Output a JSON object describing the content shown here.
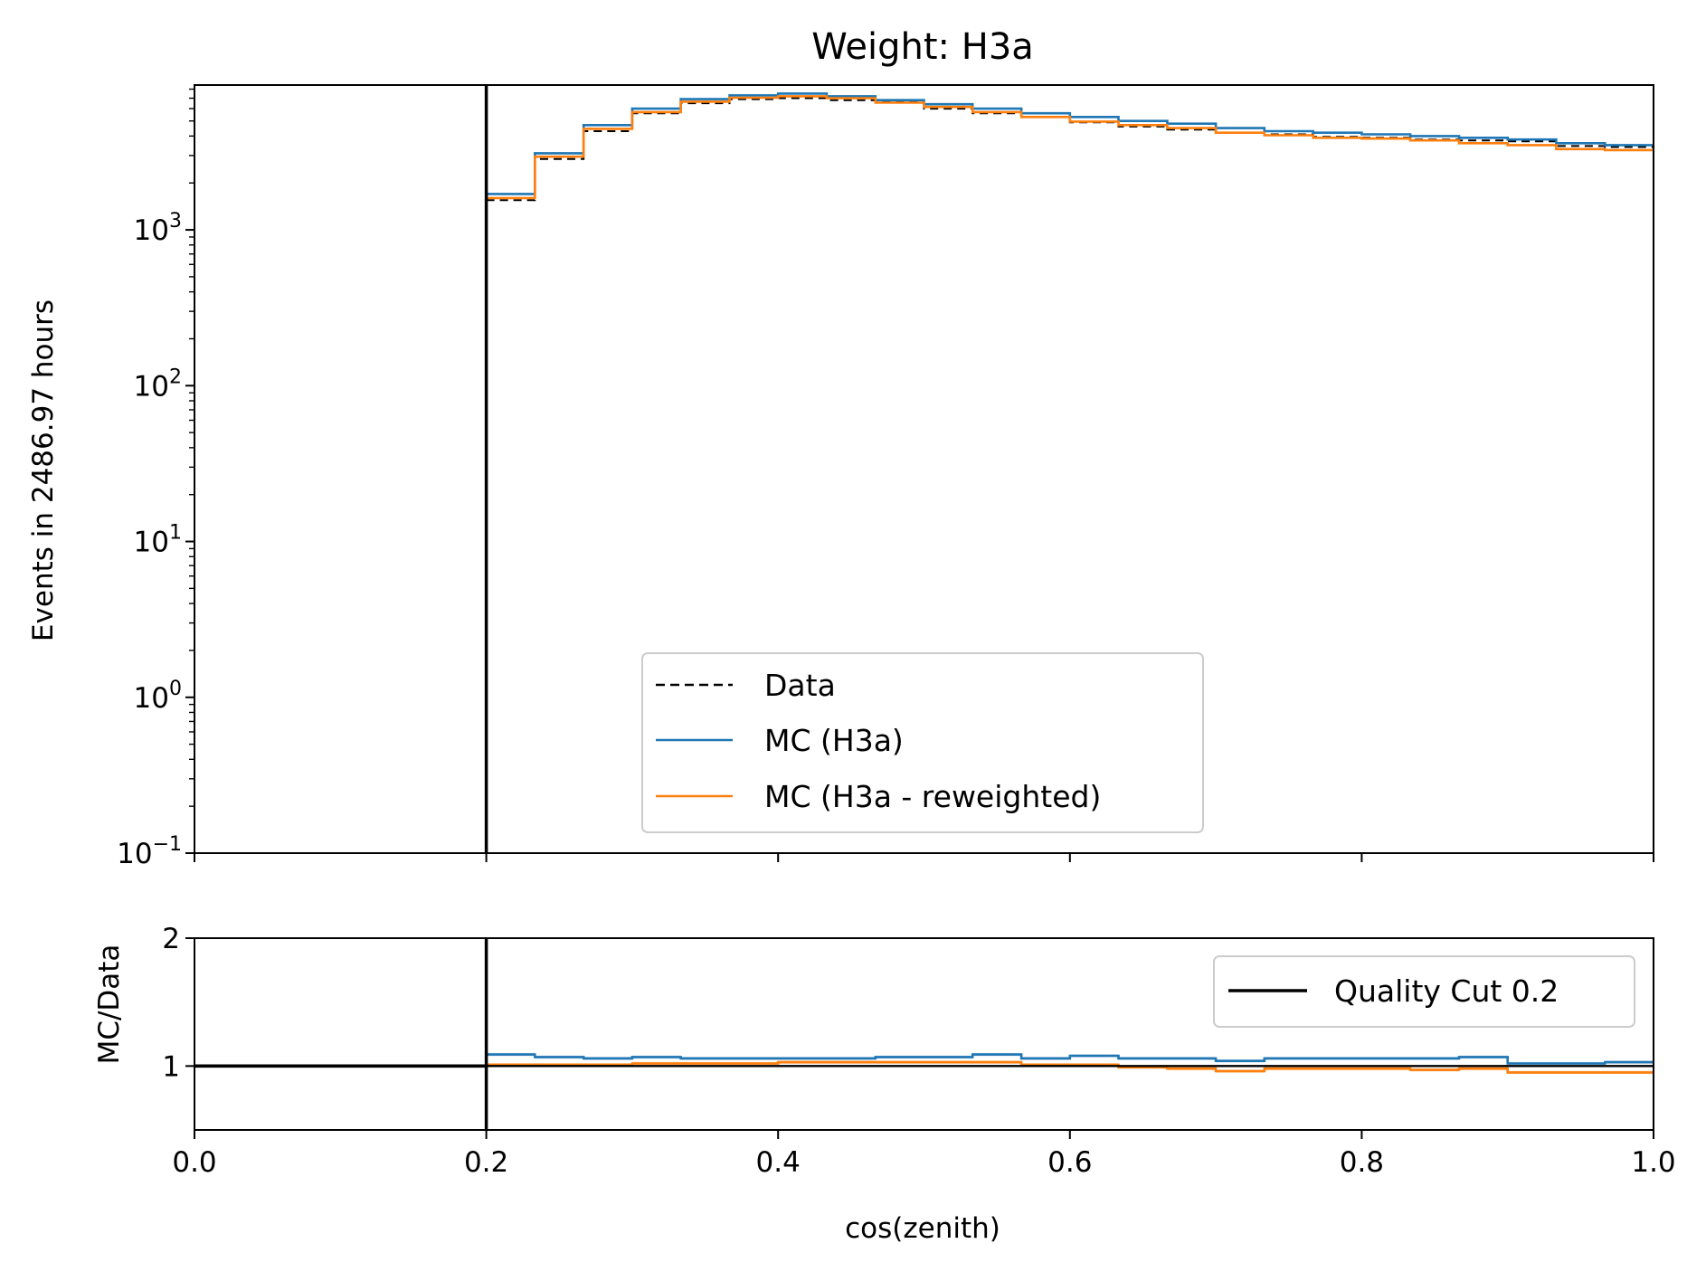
{
  "chart_data": [
    {
      "type": "line",
      "panel": "main",
      "title": "Weight: H3a",
      "ylabel": "Events in 2486.97 hours",
      "yscale": "log",
      "ylim": [
        0.1,
        8500
      ],
      "xlim": [
        0,
        1
      ],
      "y_ticks": [
        {
          "value": 0.1,
          "base": "10",
          "exp": "−1"
        },
        {
          "value": 1,
          "base": "10",
          "exp": "0"
        },
        {
          "value": 10,
          "base": "10",
          "exp": "1"
        },
        {
          "value": 100,
          "base": "10",
          "exp": "2"
        },
        {
          "value": 1000,
          "base": "10",
          "exp": "3"
        }
      ],
      "bin_edges": [
        0.2,
        0.2333,
        0.2667,
        0.3,
        0.3333,
        0.3667,
        0.4,
        0.4333,
        0.4667,
        0.5,
        0.5333,
        0.5667,
        0.6,
        0.6333,
        0.6667,
        0.7,
        0.7333,
        0.7667,
        0.8,
        0.8333,
        0.8667,
        0.9,
        0.9333,
        0.9667,
        1.0
      ],
      "series": [
        {
          "name": "Data",
          "style": "dashed",
          "color": "#000000",
          "values": [
            1550,
            2850,
            4300,
            5600,
            6500,
            6900,
            7000,
            6800,
            6600,
            6000,
            5600,
            5300,
            4900,
            4600,
            4400,
            4200,
            4100,
            3950,
            3900,
            3800,
            3750,
            3700,
            3450,
            3400
          ]
        },
        {
          "name": "MC (H3a)",
          "style": "solid",
          "color": "#1f77b4",
          "values": [
            1700,
            3100,
            4700,
            6000,
            6900,
            7300,
            7500,
            7200,
            6800,
            6400,
            6000,
            5600,
            5300,
            5000,
            4800,
            4500,
            4300,
            4200,
            4100,
            4000,
            3900,
            3800,
            3600,
            3500
          ]
        },
        {
          "name": "MC (H3a - reweighted)",
          "style": "solid",
          "color": "#ff7f0e",
          "values": [
            1600,
            2950,
            4450,
            5700,
            6650,
            7050,
            7200,
            7000,
            6550,
            6150,
            5700,
            5300,
            4950,
            4700,
            4500,
            4200,
            4050,
            3900,
            3850,
            3750,
            3600,
            3500,
            3300,
            3250
          ]
        }
      ],
      "cut_line": {
        "x": 0.2,
        "color": "#000000"
      },
      "legend": {
        "position": "lower center",
        "entries": [
          "Data",
          "MC (H3a)",
          "MC (H3a - reweighted)"
        ]
      }
    },
    {
      "type": "line",
      "panel": "ratio",
      "xlabel": "cos(zenith)",
      "ylabel": "MC/Data",
      "xlim": [
        0,
        1
      ],
      "ylim": [
        0.5,
        2
      ],
      "x_ticks": [
        "0.0",
        "0.2",
        "0.4",
        "0.6",
        "0.8",
        "1.0"
      ],
      "y_ticks": [
        "1",
        "2"
      ],
      "bin_edges": [
        0.2,
        0.2333,
        0.2667,
        0.3,
        0.3333,
        0.3667,
        0.4,
        0.4333,
        0.4667,
        0.5,
        0.5333,
        0.5667,
        0.6,
        0.6333,
        0.6667,
        0.7,
        0.7333,
        0.7667,
        0.8,
        0.8333,
        0.8667,
        0.9,
        0.9333,
        0.9667,
        1.0
      ],
      "series": [
        {
          "name": "MC (H3a)",
          "color": "#1f77b4",
          "values": [
            1.09,
            1.07,
            1.06,
            1.07,
            1.06,
            1.06,
            1.06,
            1.06,
            1.07,
            1.07,
            1.09,
            1.06,
            1.08,
            1.06,
            1.06,
            1.04,
            1.06,
            1.06,
            1.06,
            1.06,
            1.07,
            1.02,
            1.02,
            1.03
          ]
        },
        {
          "name": "MC (H3a - reweighted)",
          "color": "#ff7f0e",
          "values": [
            1.01,
            1.01,
            1.01,
            1.02,
            1.02,
            1.02,
            1.03,
            1.03,
            1.03,
            1.03,
            1.03,
            1.01,
            1.01,
            0.99,
            0.98,
            0.96,
            0.98,
            0.98,
            0.98,
            0.97,
            0.98,
            0.95,
            0.95,
            0.95
          ]
        }
      ],
      "reference_line": {
        "y": 1.0,
        "x_range": [
          0,
          0.2
        ],
        "color": "#000000"
      },
      "cut_line": {
        "x": 0.2,
        "color": "#000000"
      },
      "legend": {
        "position": "upper right",
        "entries": [
          "Quality Cut 0.2"
        ]
      }
    }
  ]
}
